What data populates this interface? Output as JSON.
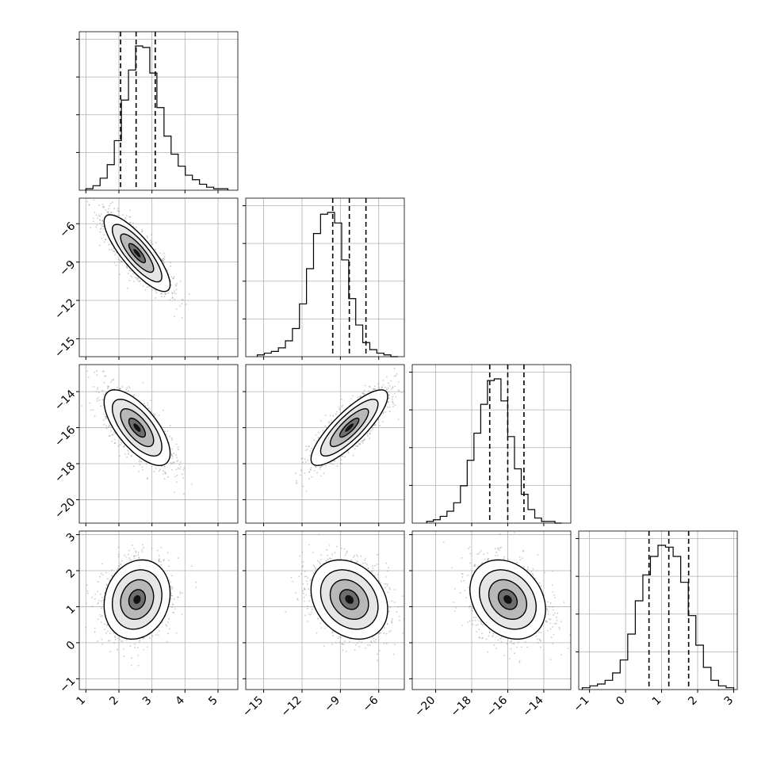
{
  "chart_data": {
    "type": "corner",
    "grid": true,
    "colors": {
      "hist": "#000000",
      "contour": "#000000",
      "grid": "#b0b0b0",
      "points": "#8a8a8a"
    },
    "quantile_lines": "dashed",
    "parameters": [
      {
        "ticks": [
          1,
          2,
          3,
          4,
          5
        ],
        "tick_labels": [
          "1",
          "2",
          "3",
          "4",
          "5"
        ],
        "range": [
          0.8,
          5.6
        ],
        "quantiles": [
          2.05,
          2.52,
          3.1
        ]
      },
      {
        "ticks": [
          -15,
          -12,
          -9,
          -6
        ],
        "tick_labels": [
          "−15",
          "−12",
          "−9",
          "−6"
        ],
        "range": [
          -16.4,
          -4.0
        ],
        "quantiles": [
          -9.6,
          -8.3,
          -7.0
        ]
      },
      {
        "ticks": [
          -20,
          -18,
          -16,
          -14
        ],
        "tick_labels": [
          "−20",
          "−18",
          "−16",
          "−14"
        ],
        "range": [
          -21.3,
          -12.5
        ],
        "quantiles": [
          -17.0,
          -16.0,
          -15.1
        ]
      },
      {
        "ticks": [
          -1,
          0,
          1,
          2,
          3
        ],
        "tick_labels": [
          "−1",
          "0",
          "1",
          "2",
          "3"
        ],
        "range": [
          -1.3,
          3.1
        ],
        "quantiles": [
          0.65,
          1.2,
          1.75
        ]
      }
    ],
    "histograms": [
      {
        "edges_range": [
          1.0,
          5.3
        ],
        "counts": [
          1,
          3,
          8,
          17,
          33,
          60,
          80,
          96,
          95,
          78,
          55,
          36,
          24,
          16,
          10,
          7,
          4,
          2,
          1,
          1
        ]
      },
      {
        "edges_range": [
          -15.5,
          -4.5
        ],
        "counts": [
          1,
          2,
          3,
          5,
          9,
          16,
          30,
          50,
          70,
          81,
          82,
          76,
          55,
          33,
          18,
          8,
          4,
          2,
          1,
          0
        ]
      },
      {
        "edges_range": [
          -20.5,
          -13.0
        ],
        "counts": [
          1,
          2,
          4,
          7,
          12,
          22,
          37,
          53,
          70,
          84,
          85,
          72,
          51,
          32,
          17,
          8,
          3,
          1,
          1,
          0
        ]
      },
      {
        "edges_range": [
          -1.2,
          3.0
        ],
        "counts": [
          1,
          2,
          3,
          5,
          9,
          16,
          30,
          48,
          62,
          72,
          78,
          77,
          72,
          58,
          40,
          24,
          12,
          5,
          2,
          1
        ]
      }
    ],
    "pairs": [
      {
        "x": 0,
        "y": 1,
        "mean": [
          2.55,
          -8.3
        ],
        "sd": [
          0.5,
          1.5
        ],
        "rho": -0.82
      },
      {
        "x": 0,
        "y": 2,
        "mean": [
          2.55,
          -16.0
        ],
        "sd": [
          0.5,
          1.05
        ],
        "rho": -0.68
      },
      {
        "x": 1,
        "y": 2,
        "mean": [
          -8.3,
          -16.0
        ],
        "sd": [
          1.5,
          1.05
        ],
        "rho": 0.83
      },
      {
        "x": 0,
        "y": 3,
        "mean": [
          2.55,
          1.2
        ],
        "sd": [
          0.5,
          0.55
        ],
        "rho": 0.15
      },
      {
        "x": 1,
        "y": 3,
        "mean": [
          -8.3,
          1.2
        ],
        "sd": [
          1.5,
          0.55
        ],
        "rho": -0.25
      },
      {
        "x": 2,
        "y": 3,
        "mean": [
          -16.0,
          1.2
        ],
        "sd": [
          1.05,
          0.55
        ],
        "rho": -0.25
      }
    ]
  }
}
